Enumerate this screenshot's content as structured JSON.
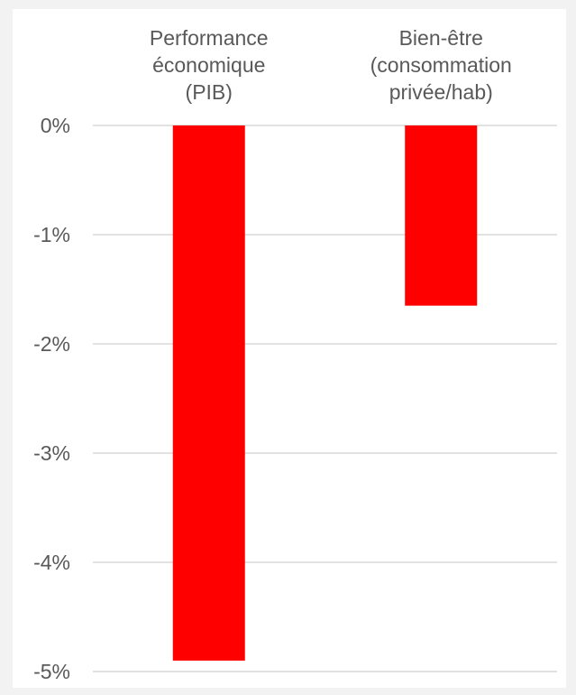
{
  "chart_data": {
    "type": "bar",
    "categories": [
      [
        "Performance",
        "économique",
        "(PIB)"
      ],
      [
        "Bien-être",
        "(consommation",
        "privée/hab)"
      ]
    ],
    "values": [
      -4.9,
      -1.65
    ],
    "ylim": [
      -5,
      0
    ],
    "yticks": [
      0,
      -1,
      -2,
      -3,
      -4,
      -5
    ],
    "ytick_labels": [
      "0%",
      "-1%",
      "-2%",
      "-3%",
      "-4%",
      "-5%"
    ],
    "category_label_position": "top",
    "grid": true,
    "legend": false,
    "title": "",
    "xlabel": "",
    "ylabel": ""
  },
  "colors": {
    "bar": "#ff0000",
    "grid": "#d9d9d9",
    "text": "#595959",
    "background": "#f2f2f2",
    "plot_background": "#ffffff"
  }
}
